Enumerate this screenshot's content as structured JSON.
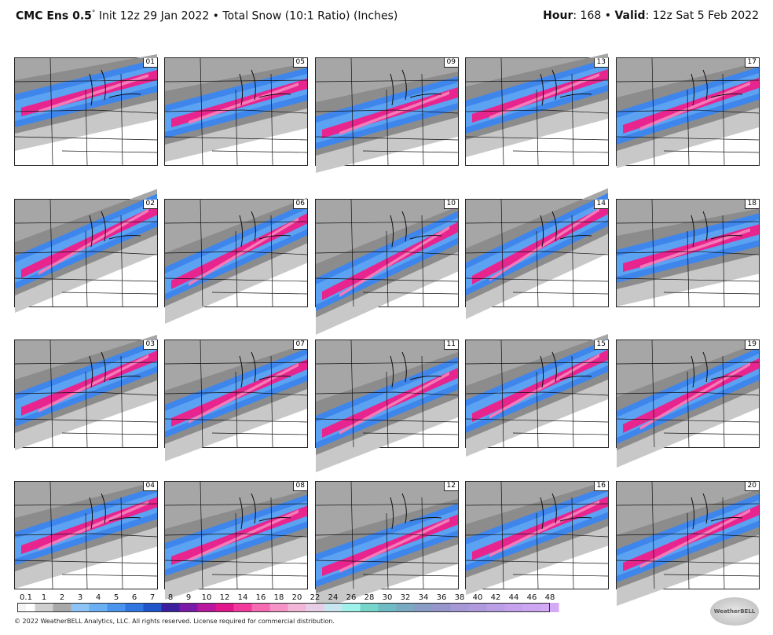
{
  "header": {
    "model": "CMC Ens 0.5",
    "degree": "°",
    "init": " Init 12z 29 Jan 2022 • Total Snow (10:1 Ratio) (Inches)",
    "hour_label": "Hour",
    "hour": ": 168 • ",
    "valid_label": "Valid",
    "valid": ": 12z Sat 5 Feb 2022"
  },
  "panels": [
    "01",
    "02",
    "03",
    "04",
    "05",
    "06",
    "07",
    "08",
    "09",
    "10",
    "11",
    "12",
    "13",
    "14",
    "15",
    "16",
    "17",
    "18",
    "19",
    "20"
  ],
  "colorbar": [
    {
      "label": "0.1",
      "color": "#f4f4f4"
    },
    {
      "label": "1",
      "color": "#cfcfcf"
    },
    {
      "label": "2",
      "color": "#a8a8a8"
    },
    {
      "label": "3",
      "color": "#8ec4f5"
    },
    {
      "label": "4",
      "color": "#6aaef3"
    },
    {
      "label": "5",
      "color": "#4a94ee"
    },
    {
      "label": "6",
      "color": "#2f76e0"
    },
    {
      "label": "7",
      "color": "#1f55c8"
    },
    {
      "label": "8",
      "color": "#3b1f9e"
    },
    {
      "label": "9",
      "color": "#7a1aa8"
    },
    {
      "label": "10",
      "color": "#b8169e"
    },
    {
      "label": "12",
      "color": "#e0168a"
    },
    {
      "label": "14",
      "color": "#f23a9c"
    },
    {
      "label": "16",
      "color": "#f56ab2"
    },
    {
      "label": "18",
      "color": "#f592c6"
    },
    {
      "label": "20",
      "color": "#f2b6d8"
    },
    {
      "label": "22",
      "color": "#e6cfe6"
    },
    {
      "label": "24",
      "color": "#c8e6f2"
    },
    {
      "label": "26",
      "color": "#9ef2ea"
    },
    {
      "label": "28",
      "color": "#76d6cc"
    },
    {
      "label": "30",
      "color": "#6fbcc4"
    },
    {
      "label": "32",
      "color": "#7aaac2"
    },
    {
      "label": "34",
      "color": "#889cc6"
    },
    {
      "label": "36",
      "color": "#9696cc"
    },
    {
      "label": "38",
      "color": "#a698d6"
    },
    {
      "label": "40",
      "color": "#b09ade"
    },
    {
      "label": "42",
      "color": "#ba9ee6"
    },
    {
      "label": "44",
      "color": "#c4a2ee"
    },
    {
      "label": "46",
      "color": "#cca6f2"
    },
    {
      "label": "48",
      "color": "#d4aaf6"
    }
  ],
  "footer": "© 2022 WeatherBELL Analytics, LLC. All rights reserved. License required for commercial distribution.",
  "logo": "WeatherBELL"
}
